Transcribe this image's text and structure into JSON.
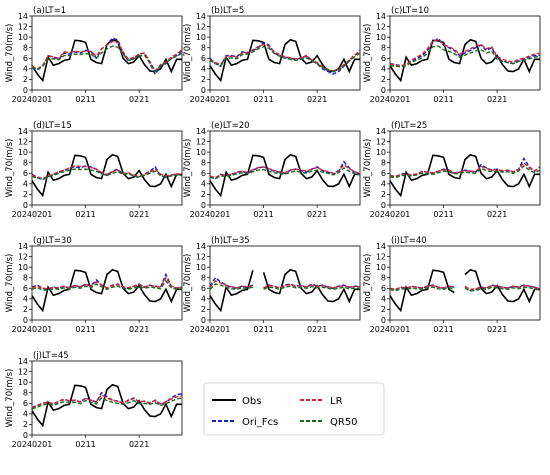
{
  "chart_data": {
    "type": "line",
    "dates": [
      "20240201",
      "20240202",
      "20240203",
      "20240204",
      "20240205",
      "20240206",
      "20240207",
      "20240208",
      "20240209",
      "20240210",
      "20240211",
      "20240212",
      "20240213",
      "20240214",
      "20240215",
      "20240216",
      "20240217",
      "20240218",
      "20240219",
      "20240220",
      "20240221",
      "20240222",
      "20240223",
      "20240224",
      "20240225",
      "20240226",
      "20240227",
      "20240228",
      "20240229"
    ],
    "xticks": [
      "20240201",
      "0211",
      "0221"
    ],
    "ylim": [
      0,
      14
    ],
    "yticks": [
      "0",
      "2",
      "4",
      "6",
      "8",
      "10",
      "12",
      "14"
    ],
    "ylabel": "Wind_70(m/s)",
    "colors": {
      "Obs": "#000000",
      "Ori_Fcs": "#1f1fc8",
      "LR": "#d62728",
      "QR50": "#1e6b1e"
    },
    "legend": [
      "Obs",
      "LR",
      "Ori_Fcs",
      "QR50"
    ],
    "obs": [
      4.6,
      3.0,
      1.8,
      6.2,
      4.7,
      5.0,
      5.6,
      5.8,
      9.4,
      9.3,
      9.0,
      5.8,
      5.2,
      5.0,
      8.6,
      9.5,
      9.2,
      6.0,
      5.0,
      5.3,
      6.5,
      4.8,
      3.6,
      3.5,
      4.0,
      5.8,
      3.5,
      5.8,
      5.8
    ],
    "panels": [
      {
        "title": "(a)LT=1",
        "ori": [
          4.2,
          3.8,
          4.5,
          6.5,
          6.2,
          5.8,
          7.0,
          6.8,
          7.2,
          7.0,
          7.5,
          7.3,
          6.0,
          7.8,
          8.5,
          9.8,
          9.5,
          7.0,
          5.5,
          6.0,
          6.8,
          7.0,
          5.0,
          3.0,
          4.5,
          5.0,
          6.0,
          6.5,
          7.5
        ],
        "lr": [
          4.5,
          4.0,
          4.7,
          6.4,
          6.3,
          6.0,
          7.2,
          7.1,
          7.3,
          7.2,
          7.4,
          7.3,
          6.4,
          7.8,
          8.5,
          9.2,
          9.0,
          7.2,
          5.8,
          6.2,
          6.8,
          7.0,
          5.4,
          3.6,
          4.8,
          5.3,
          6.2,
          6.8,
          7.6
        ],
        "qr": [
          4.3,
          3.9,
          4.5,
          5.8,
          5.9,
          5.7,
          6.5,
          6.5,
          6.8,
          6.7,
          6.9,
          6.8,
          6.0,
          7.0,
          7.8,
          8.3,
          8.1,
          6.8,
          5.6,
          5.9,
          6.4,
          6.6,
          5.2,
          3.5,
          4.6,
          5.1,
          5.9,
          6.4,
          7.0
        ]
      },
      {
        "title": "(b)LT=5",
        "ori": [
          6.0,
          5.0,
          4.5,
          6.5,
          6.5,
          6.3,
          7.2,
          7.0,
          7.5,
          8.0,
          9.0,
          8.5,
          7.0,
          6.5,
          6.2,
          6.0,
          5.8,
          6.0,
          6.5,
          5.5,
          5.0,
          4.0,
          3.5,
          3.0,
          3.5,
          4.5,
          5.5,
          6.5,
          7.5
        ],
        "lr": [
          5.8,
          5.2,
          4.8,
          6.3,
          6.4,
          6.2,
          7.0,
          7.1,
          7.6,
          8.2,
          8.6,
          8.3,
          7.2,
          6.7,
          6.3,
          6.1,
          5.9,
          6.1,
          6.4,
          5.7,
          5.2,
          4.4,
          3.9,
          3.6,
          3.9,
          4.8,
          5.7,
          6.6,
          7.4
        ],
        "qr": [
          5.6,
          5.0,
          4.6,
          6.0,
          6.1,
          5.9,
          6.7,
          6.8,
          7.2,
          7.8,
          8.2,
          7.9,
          6.9,
          6.4,
          6.0,
          5.8,
          5.6,
          5.8,
          6.1,
          5.5,
          5.0,
          4.3,
          3.8,
          3.5,
          3.8,
          4.6,
          5.5,
          6.3,
          7.0
        ]
      },
      {
        "title": "(c)LT=10",
        "ori": [
          5.0,
          4.8,
          4.6,
          4.8,
          5.5,
          6.0,
          6.5,
          7.5,
          9.0,
          9.8,
          8.5,
          8.0,
          7.5,
          6.5,
          7.0,
          7.5,
          8.0,
          8.5,
          7.5,
          8.0,
          6.0,
          5.5,
          5.2,
          5.0,
          5.5,
          5.8,
          6.2,
          6.5,
          6.6
        ],
        "lr": [
          4.9,
          4.7,
          4.6,
          4.8,
          5.6,
          6.2,
          6.8,
          7.8,
          9.3,
          9.5,
          8.6,
          8.2,
          7.7,
          6.8,
          7.3,
          7.8,
          8.3,
          8.6,
          7.8,
          8.2,
          6.3,
          5.8,
          5.5,
          5.3,
          5.8,
          6.0,
          6.4,
          6.8,
          7.0
        ],
        "qr": [
          4.6,
          4.5,
          4.4,
          4.6,
          5.2,
          5.7,
          6.1,
          7.0,
          8.2,
          8.3,
          7.6,
          7.3,
          6.9,
          6.2,
          6.6,
          7.0,
          7.4,
          7.6,
          7.0,
          7.3,
          5.8,
          5.4,
          5.2,
          5.0,
          5.4,
          5.6,
          5.9,
          6.2,
          6.4
        ]
      },
      {
        "title": "(d)LT=15",
        "ori": [
          5.8,
          5.2,
          4.8,
          5.4,
          5.8,
          6.2,
          6.5,
          7.0,
          7.2,
          7.0,
          7.4,
          7.2,
          6.8,
          6.0,
          5.6,
          6.4,
          6.8,
          5.8,
          6.0,
          5.5,
          5.2,
          5.8,
          6.4,
          7.2,
          5.5,
          5.2,
          5.6,
          5.8,
          5.6
        ],
        "lr": [
          5.6,
          5.3,
          5.0,
          5.5,
          5.8,
          6.3,
          6.6,
          7.0,
          7.4,
          7.3,
          7.3,
          7.1,
          6.8,
          6.2,
          5.8,
          6.3,
          6.6,
          6.0,
          6.1,
          5.7,
          5.4,
          5.8,
          6.2,
          6.8,
          5.8,
          5.5,
          5.7,
          5.9,
          5.8
        ],
        "qr": [
          5.4,
          5.1,
          4.9,
          5.3,
          5.6,
          6.0,
          6.3,
          6.6,
          6.8,
          6.7,
          6.8,
          6.6,
          6.4,
          5.9,
          5.6,
          6.0,
          6.3,
          5.8,
          5.9,
          5.5,
          5.3,
          5.6,
          6.0,
          6.4,
          5.6,
          5.3,
          5.5,
          5.7,
          5.6
        ]
      },
      {
        "title": "(e)LT=20",
        "ori": [
          5.5,
          5.0,
          5.8,
          5.6,
          5.8,
          6.2,
          6.4,
          6.0,
          6.6,
          7.0,
          7.2,
          6.8,
          6.4,
          6.2,
          6.0,
          6.6,
          6.8,
          6.5,
          6.2,
          6.8,
          7.2,
          6.5,
          6.2,
          5.8,
          6.4,
          8.2,
          7.0,
          6.2,
          5.8
        ],
        "lr": [
          5.4,
          5.2,
          5.7,
          5.6,
          5.8,
          6.1,
          6.4,
          6.2,
          6.7,
          7.1,
          7.2,
          6.9,
          6.5,
          6.3,
          6.1,
          6.6,
          6.8,
          6.6,
          6.4,
          6.8,
          7.1,
          6.6,
          6.3,
          6.0,
          6.5,
          7.6,
          6.9,
          6.3,
          6.0
        ],
        "qr": [
          5.2,
          5.0,
          5.5,
          5.4,
          5.6,
          5.9,
          6.1,
          5.9,
          6.3,
          6.6,
          6.7,
          6.4,
          6.1,
          6.0,
          5.8,
          6.2,
          6.4,
          6.2,
          6.0,
          6.4,
          6.6,
          6.2,
          6.0,
          5.7,
          6.1,
          7.0,
          6.4,
          5.9,
          5.7
        ]
      },
      {
        "title": "(f)LT=25",
        "ori": [
          5.6,
          5.4,
          5.8,
          6.0,
          5.6,
          5.8,
          6.4,
          6.2,
          6.0,
          6.4,
          6.8,
          6.6,
          6.0,
          6.2,
          6.6,
          6.4,
          6.2,
          7.6,
          7.0,
          6.6,
          6.8,
          6.4,
          6.6,
          6.2,
          6.8,
          8.8,
          7.2,
          6.4,
          7.2
        ],
        "lr": [
          5.5,
          5.4,
          5.7,
          5.9,
          5.7,
          5.9,
          6.3,
          6.2,
          6.1,
          6.4,
          6.7,
          6.6,
          6.1,
          6.2,
          6.5,
          6.4,
          6.3,
          7.3,
          6.9,
          6.6,
          6.7,
          6.5,
          6.6,
          6.3,
          6.7,
          8.0,
          7.0,
          6.5,
          7.0
        ],
        "qr": [
          5.3,
          5.2,
          5.5,
          5.7,
          5.5,
          5.7,
          6.0,
          5.9,
          5.8,
          6.1,
          6.4,
          6.3,
          5.9,
          6.0,
          6.2,
          6.1,
          6.0,
          6.9,
          6.5,
          6.3,
          6.4,
          6.2,
          6.3,
          6.0,
          6.4,
          7.4,
          6.6,
          6.1,
          6.6
        ]
      },
      {
        "title": "(g)LT=30",
        "ori": [
          6.2,
          6.6,
          6.0,
          5.8,
          6.2,
          6.0,
          6.4,
          6.0,
          6.6,
          6.2,
          6.8,
          6.4,
          7.6,
          6.6,
          6.0,
          6.6,
          6.8,
          6.2,
          6.0,
          6.4,
          6.8,
          6.2,
          6.6,
          6.4,
          6.2,
          8.6,
          6.4,
          6.0,
          6.2
        ],
        "lr": [
          6.1,
          6.4,
          6.0,
          5.9,
          6.2,
          6.1,
          6.4,
          6.1,
          6.5,
          6.3,
          6.7,
          6.4,
          7.2,
          6.6,
          6.1,
          6.5,
          6.7,
          6.3,
          6.1,
          6.4,
          6.7,
          6.3,
          6.5,
          6.4,
          6.2,
          8.0,
          6.4,
          6.1,
          6.2
        ],
        "qr": [
          5.8,
          6.1,
          5.7,
          5.6,
          5.9,
          5.8,
          6.1,
          5.8,
          6.2,
          6.0,
          6.4,
          6.1,
          6.8,
          6.3,
          5.8,
          6.2,
          6.4,
          6.0,
          5.8,
          6.1,
          6.4,
          6.0,
          6.2,
          6.1,
          5.9,
          7.4,
          6.1,
          5.8,
          5.9
        ]
      },
      {
        "title": "(h)LT=35",
        "ori": [
          6.4,
          8.0,
          7.2,
          6.6,
          6.2,
          6.0,
          6.4,
          6.2,
          6.6,
          4.6,
          6.0,
          6.6,
          6.4,
          6.0,
          6.6,
          6.8,
          6.4,
          6.6,
          6.2,
          6.8,
          6.4,
          6.6,
          6.2,
          6.0,
          6.4,
          6.6,
          6.2,
          6.4,
          6.4
        ],
        "lr": [
          6.2,
          7.4,
          7.0,
          6.6,
          6.3,
          6.1,
          6.4,
          6.3,
          6.5,
          5.4,
          6.1,
          6.5,
          6.4,
          6.1,
          6.5,
          6.7,
          6.4,
          6.5,
          6.3,
          6.6,
          6.4,
          6.5,
          6.3,
          6.1,
          6.3,
          6.5,
          6.2,
          6.3,
          6.3
        ],
        "qr": [
          5.8,
          6.8,
          6.6,
          6.2,
          5.9,
          5.8,
          6.1,
          6.0,
          6.2,
          5.2,
          5.8,
          6.2,
          6.1,
          5.8,
          6.2,
          6.4,
          6.1,
          6.2,
          6.0,
          6.3,
          6.1,
          6.2,
          6.0,
          5.8,
          6.0,
          6.2,
          5.9,
          6.0,
          6.0
        ],
        "gaps": [
          9
        ]
      },
      {
        "title": "(i)LT=40",
        "ori": [
          6.0,
          5.6,
          6.2,
          6.0,
          6.4,
          6.2,
          6.0,
          6.4,
          6.6,
          6.2,
          6.0,
          6.4,
          6.2,
          6.0,
          6.4,
          5.6,
          5.8,
          6.2,
          6.0,
          6.6,
          6.4,
          6.2,
          6.0,
          6.4,
          6.2,
          6.6,
          6.4,
          6.2,
          5.8
        ],
        "lr": [
          6.0,
          5.8,
          6.2,
          6.1,
          6.3,
          6.2,
          6.1,
          6.4,
          6.5,
          6.2,
          6.1,
          6.4,
          6.2,
          6.1,
          6.3,
          5.8,
          5.9,
          6.2,
          6.1,
          6.5,
          6.4,
          6.2,
          6.1,
          6.4,
          6.2,
          6.5,
          6.4,
          6.2,
          5.9
        ],
        "qr": [
          5.8,
          5.5,
          5.9,
          5.8,
          6.0,
          5.9,
          5.8,
          6.1,
          6.2,
          5.9,
          5.8,
          6.1,
          5.9,
          5.8,
          6.0,
          5.5,
          5.6,
          5.9,
          5.8,
          6.2,
          6.1,
          5.9,
          5.8,
          6.1,
          5.9,
          6.2,
          6.1,
          5.9,
          5.6
        ],
        "gaps": [
          13
        ]
      },
      {
        "title": "(j)LT=45",
        "ori": [
          5.2,
          5.6,
          6.0,
          6.2,
          5.8,
          6.4,
          6.8,
          6.4,
          6.6,
          6.2,
          7.0,
          6.6,
          6.2,
          8.0,
          7.2,
          6.6,
          6.4,
          6.0,
          6.6,
          7.0,
          6.2,
          6.4,
          6.0,
          6.6,
          5.8,
          6.2,
          7.0,
          7.6,
          7.8
        ],
        "lr": [
          5.1,
          5.5,
          6.0,
          6.2,
          5.9,
          6.4,
          6.7,
          6.5,
          6.6,
          6.3,
          6.9,
          6.6,
          6.3,
          7.6,
          7.0,
          6.6,
          6.4,
          6.1,
          6.5,
          6.9,
          6.3,
          6.4,
          6.1,
          6.5,
          5.9,
          6.3,
          6.8,
          7.2,
          7.4
        ],
        "qr": [
          4.9,
          5.3,
          5.7,
          5.9,
          5.6,
          6.0,
          6.3,
          6.1,
          6.2,
          5.9,
          6.5,
          6.2,
          5.9,
          7.0,
          6.5,
          6.2,
          6.0,
          5.8,
          6.1,
          6.5,
          5.9,
          6.0,
          5.8,
          6.1,
          5.6,
          5.9,
          6.4,
          6.8,
          7.0
        ]
      }
    ]
  }
}
